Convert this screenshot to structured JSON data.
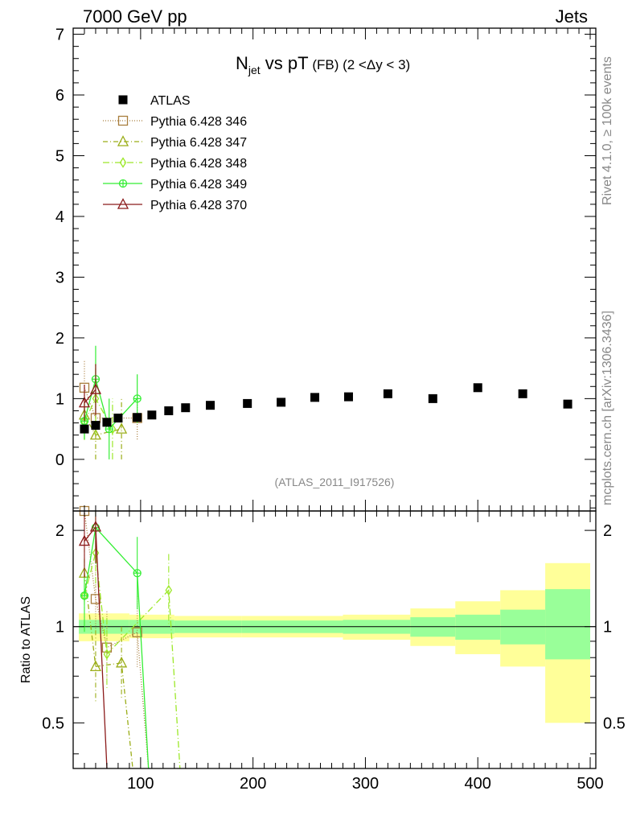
{
  "header": {
    "left": "7000 GeV pp",
    "right": "Jets"
  },
  "side_labels": {
    "rivet": "Rivet 4.1.0, ≥ 100k events",
    "mcplots": "mcplots.cern.ch [arXiv:1306.3436]"
  },
  "watermark": "(ATLAS_2011_I917526)",
  "chart_data": {
    "type": "scatter",
    "title": {
      "main": "N",
      "sub": "jet",
      "rest": " vs pT",
      "tag": " (FB) (2 <Δy < 3)"
    },
    "xlabel": "",
    "ylabel_top": "",
    "ylabel_ratio": "Ratio to ATLAS",
    "xlim": [
      40,
      505
    ],
    "ylim_top": [
      -0.85,
      7.1
    ],
    "ylim_ratio": [
      0.36,
      2.3
    ],
    "x_ticks": [
      "100",
      "200",
      "300",
      "400",
      "500"
    ],
    "y_ticks_top": [
      "0",
      "1",
      "2",
      "3",
      "4",
      "5",
      "6",
      "7"
    ],
    "y_ticks_ratio": [
      "0.5",
      "1",
      "2"
    ],
    "legend": [
      {
        "label": "ATLAS",
        "color": "#000000",
        "marker": "square-filled",
        "dash": ""
      },
      {
        "label": "Pythia 6.428 346",
        "color": "#a87d3c",
        "marker": "square-open",
        "dash": "1,2"
      },
      {
        "label": "Pythia 6.428 347",
        "color": "#9aad18",
        "marker": "triangle-open",
        "dash": "6,3,1,3"
      },
      {
        "label": "Pythia 6.428 348",
        "color": "#9ce829",
        "marker": "diamond-open",
        "dash": "8,3,1,3"
      },
      {
        "label": "Pythia 6.428 349",
        "color": "#33ee33",
        "marker": "cross-open",
        "dash": ""
      },
      {
        "label": "Pythia 6.428 370",
        "color": "#8b1a1a",
        "marker": "triangle-open",
        "dash": ""
      }
    ],
    "atlas": {
      "x": [
        50,
        60,
        70,
        80,
        97,
        110,
        125,
        140,
        162,
        195,
        225,
        255,
        285,
        320,
        360,
        400,
        440,
        480
      ],
      "y": [
        0.5,
        0.56,
        0.61,
        0.68,
        0.69,
        0.73,
        0.8,
        0.85,
        0.89,
        0.92,
        0.94,
        1.02,
        1.03,
        1.08,
        1.0,
        1.18,
        1.08,
        0.91
      ]
    },
    "bands": [
      {
        "x0": 45,
        "x1": 60,
        "green": [
          0.95,
          1.05
        ],
        "yellow": [
          0.9,
          1.1
        ]
      },
      {
        "x0": 60,
        "x1": 90,
        "green": [
          0.95,
          1.05
        ],
        "yellow": [
          0.9,
          1.1
        ]
      },
      {
        "x0": 90,
        "x1": 130,
        "green": [
          0.95,
          1.05
        ],
        "yellow": [
          0.92,
          1.09
        ]
      },
      {
        "x0": 130,
        "x1": 190,
        "green": [
          0.955,
          1.045
        ],
        "yellow": [
          0.925,
          1.08
        ]
      },
      {
        "x0": 190,
        "x1": 280,
        "green": [
          0.955,
          1.045
        ],
        "yellow": [
          0.925,
          1.08
        ]
      },
      {
        "x0": 280,
        "x1": 340,
        "green": [
          0.95,
          1.05
        ],
        "yellow": [
          0.91,
          1.09
        ]
      },
      {
        "x0": 340,
        "x1": 380,
        "green": [
          0.93,
          1.07
        ],
        "yellow": [
          0.87,
          1.14
        ]
      },
      {
        "x0": 380,
        "x1": 420,
        "green": [
          0.91,
          1.09
        ],
        "yellow": [
          0.82,
          1.2
        ]
      },
      {
        "x0": 420,
        "x1": 460,
        "green": [
          0.88,
          1.13
        ],
        "yellow": [
          0.75,
          1.3
        ]
      },
      {
        "x0": 460,
        "x1": 500,
        "green": [
          0.79,
          1.31
        ],
        "yellow": [
          0.5,
          1.58
        ]
      }
    ],
    "series": [
      {
        "name": "Pythia 6.428 346",
        "x": [
          50,
          60,
          97
        ],
        "y": [
          1.18,
          0.68,
          0.68
        ],
        "err": [
          0.45,
          0.3,
          0.35
        ]
      },
      {
        "name": "Pythia 6.428 347",
        "x": [
          50,
          60,
          83
        ],
        "y": [
          0.73,
          0.4,
          0.5
        ],
        "err": [
          0.3,
          0.4,
          0.5
        ]
      },
      {
        "name": "Pythia 6.428 348",
        "x": [
          50,
          60,
          75
        ],
        "y": [
          0.62,
          1.0,
          0.5
        ],
        "err": [
          0.3,
          0.6,
          0.5
        ]
      },
      {
        "name": "Pythia 6.428 349",
        "x": [
          50,
          60,
          72,
          97
        ],
        "y": [
          0.63,
          1.32,
          0.5,
          1.0
        ],
        "err": [
          0.3,
          0.55,
          0.5,
          0.4
        ]
      },
      {
        "name": "Pythia 6.428 370",
        "x": [
          50,
          60
        ],
        "y": [
          0.93,
          1.15
        ],
        "err": [
          0.3,
          0.42
        ]
      }
    ],
    "ratio_series": [
      {
        "name": "Pythia 6.428 346",
        "x": [
          50,
          60,
          70,
          97
        ],
        "y": [
          2.3,
          1.22,
          0.86,
          0.96
        ]
      },
      {
        "name": "Pythia 6.428 347",
        "x": [
          50,
          60,
          83
        ],
        "y": [
          1.47,
          0.75,
          0.77
        ]
      },
      {
        "name": "Pythia 6.428 348",
        "x": [
          50,
          60,
          70,
          125
        ],
        "y": [
          1.25,
          1.7,
          0.82,
          1.3
        ]
      },
      {
        "name": "Pythia 6.428 349",
        "x": [
          50,
          60,
          97
        ],
        "y": [
          1.25,
          2.04,
          1.47
        ]
      },
      {
        "name": "Pythia 6.428 370",
        "x": [
          50,
          60
        ],
        "y": [
          1.85,
          2.05
        ]
      }
    ]
  }
}
